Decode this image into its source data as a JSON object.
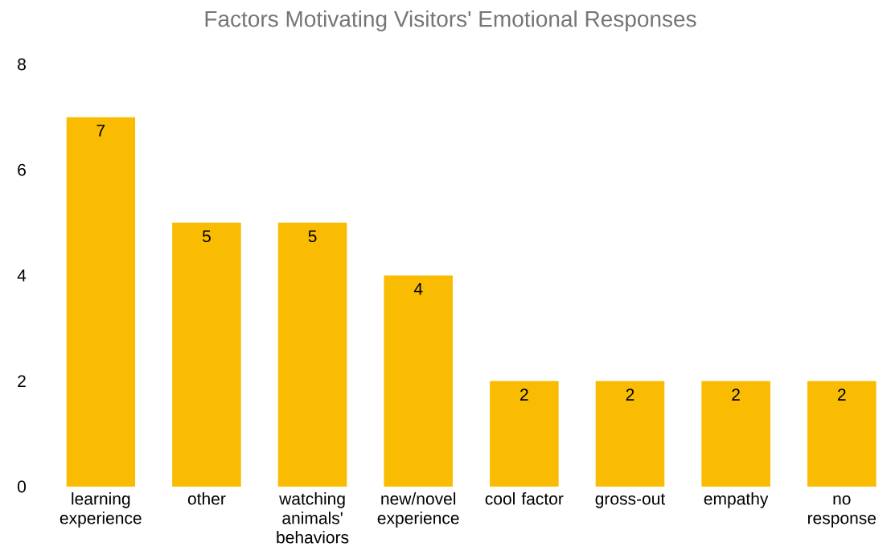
{
  "chart_data": {
    "type": "bar",
    "title": "Factors Motivating Visitors' Emotional Responses",
    "categories": [
      "learning experience",
      "other",
      "watching animals' behaviors",
      "new/novel experience",
      "cool factor",
      "gross-out",
      "empathy",
      "no response"
    ],
    "values": [
      7,
      5,
      5,
      4,
      2,
      2,
      2,
      2
    ],
    "color": "#f9bc02",
    "ylim": [
      0,
      8
    ],
    "yticks": [
      0,
      2,
      4,
      6,
      8
    ],
    "data_labels": true
  }
}
